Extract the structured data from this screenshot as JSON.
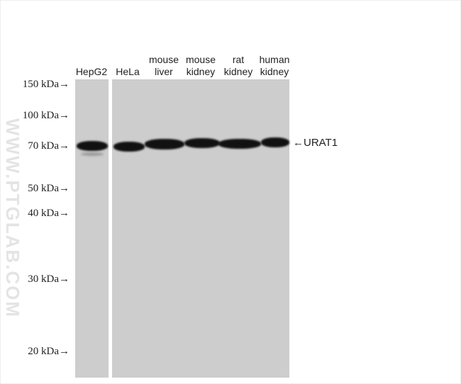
{
  "lanes": [
    "HepG2",
    "HeLa",
    "mouse liver",
    "mouse kidney",
    "rat kidney",
    "human kidney"
  ],
  "markers": [
    "150 kDa→",
    "100 kDa→",
    "70 kDa→",
    "50 kDa→",
    "40 kDa→",
    "30 kDa→",
    "20 kDa→"
  ],
  "target_label": "←URAT1",
  "watermark": "WWW.PTGLAB.COM",
  "colors": {
    "membrane": "#cdcdcd",
    "band": "#111111"
  }
}
